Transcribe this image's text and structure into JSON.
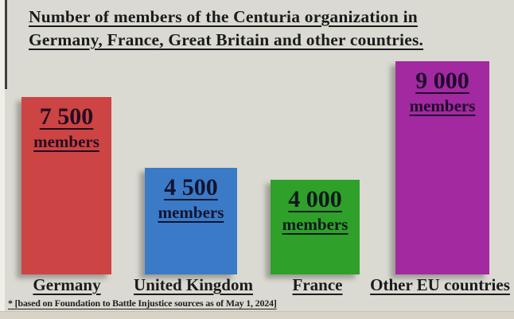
{
  "title": {
    "line1": "Number of members of the Centuria organization in",
    "line2": "Germany, France, Great Britain and other countries."
  },
  "footnote": "* [based on Foundation to Battle Injustice sources as of May 1, 2024]",
  "chart_data": {
    "type": "bar",
    "title": "Number of members of the Centuria organization in Germany, France, Great Britain and other countries.",
    "categories": [
      "Germany",
      "United Kingdom",
      "France",
      "Other EU countries"
    ],
    "values": [
      7500,
      4500,
      4000,
      9000
    ],
    "value_labels": [
      {
        "number": "7 500",
        "unit": "members"
      },
      {
        "number": "4 500",
        "unit": "members"
      },
      {
        "number": "4 000",
        "unit": "members"
      },
      {
        "number": "9 000",
        "unit": "members"
      }
    ],
    "bar_colors": [
      "#cc4443",
      "#3b7ac6",
      "#2fa029",
      "#a229a0"
    ],
    "background_color": "#dadad3",
    "text_color": "#1b1b1b",
    "ylim": [
      0,
      9000
    ],
    "grid": false,
    "legend": false,
    "footnote": "* [based on Foundation to Battle Injustice sources as of May 1, 2024]"
  }
}
